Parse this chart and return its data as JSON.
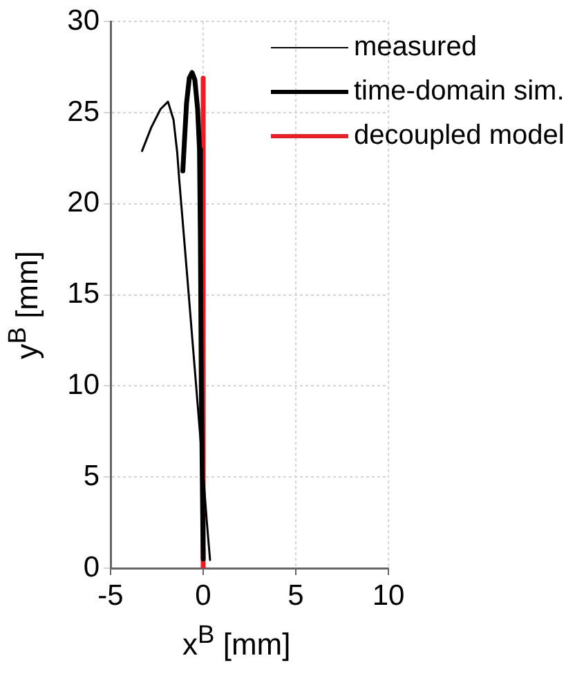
{
  "chart_data": {
    "type": "line",
    "xlabel": "x$^{B}$ [mm]",
    "ylabel": "y$^{B}$ [mm]",
    "xlim": [
      -5,
      10
    ],
    "xticks": [
      -5,
      0,
      5,
      10
    ],
    "ylim": [
      0,
      30
    ],
    "yticks": [
      0,
      5,
      10,
      15,
      20,
      25,
      30
    ],
    "grid": true,
    "legend": "top right",
    "marker": "none",
    "series": [
      {
        "name": "measured",
        "color": "#000000",
        "x": [
          -3.3,
          -2.8,
          -2.3,
          -1.9,
          -1.6,
          -1.4,
          -1.3,
          -0.9,
          -0.5,
          -0.1,
          0.2,
          0.37
        ],
        "values": [
          22.9,
          24.2,
          25.2,
          25.6,
          24.6,
          22.8,
          21.4,
          16.5,
          11.5,
          6.5,
          2.5,
          0.45
        ]
      },
      {
        "name": "time-domain sim.",
        "color": "#000000",
        "x": [
          -1.1,
          -0.9,
          -0.75,
          -0.6,
          -0.45,
          -0.3,
          -0.2,
          -0.15,
          -0.1,
          0
        ],
        "values": [
          21.8,
          25.5,
          26.9,
          27.2,
          26.8,
          25.2,
          23,
          18,
          10,
          0.5
        ]
      },
      {
        "name": "decoupled model",
        "color": "#ee1c25",
        "x": [
          0,
          0
        ],
        "values": [
          0,
          26.9
        ]
      }
    ]
  }
}
